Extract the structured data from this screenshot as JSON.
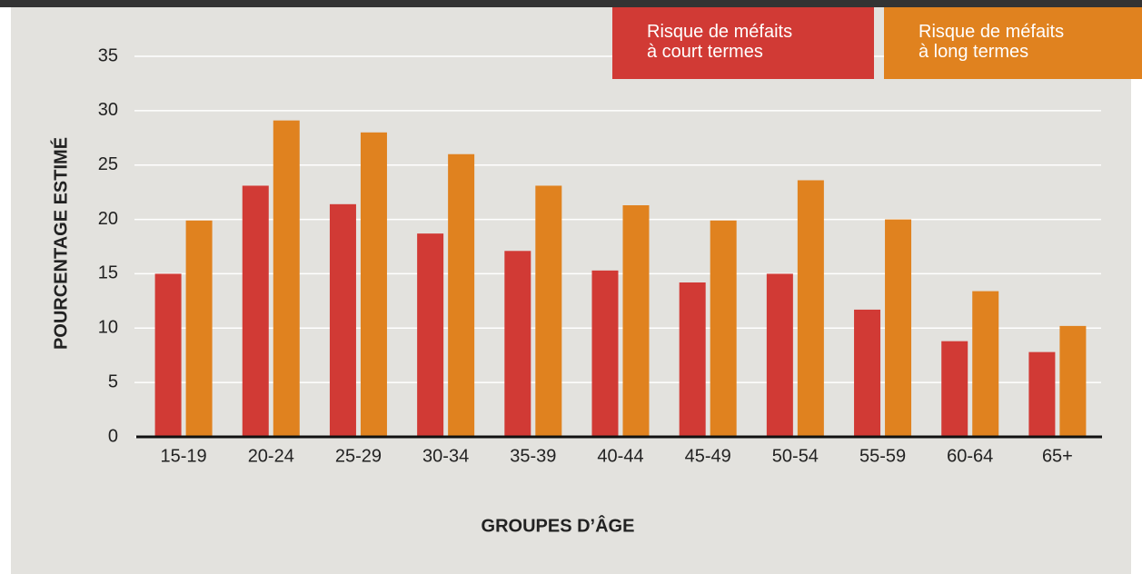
{
  "chart_data": {
    "type": "bar",
    "x_label": "GROUPES D’ÂGE",
    "y_label": "POURCENTAGE ESTIMÉ",
    "categories": [
      "15-19",
      "20-24",
      "25-29",
      "30-34",
      "35-39",
      "40-44",
      "45-49",
      "50-54",
      "55-59",
      "60-64",
      "65+"
    ],
    "series": [
      {
        "name": "Risque de méfaits à court termes",
        "color": "#d13a35",
        "values": [
          15.0,
          23.1,
          21.4,
          18.7,
          17.1,
          15.3,
          14.2,
          15.0,
          11.7,
          8.8,
          7.8
        ]
      },
      {
        "name": "Risque de méfaits à long termes",
        "color": "#e0821f",
        "values": [
          19.9,
          29.1,
          28.0,
          26.0,
          23.1,
          21.3,
          19.9,
          23.6,
          20.0,
          13.4,
          10.2
        ]
      }
    ],
    "ylim": [
      0,
      35
    ],
    "yticks": [
      0,
      5,
      10,
      15,
      20,
      25,
      30,
      35
    ],
    "grid": true,
    "legend": "top-right"
  }
}
